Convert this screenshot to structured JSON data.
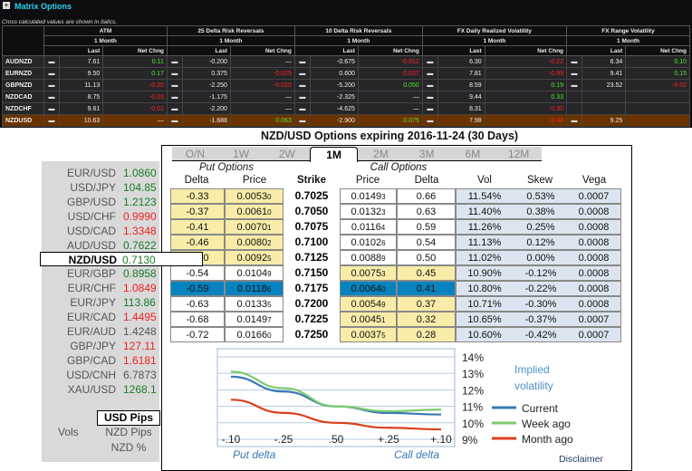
{
  "panel": {
    "title": "Matrix Options",
    "note": "Cross calculated values are shown in italics."
  },
  "matrix": {
    "groups": [
      "ATM",
      "25 Delta Risk Reversals",
      "10 Delta Risk Reversals",
      "FX Daily Realized Volatility",
      "FX Range Volatility"
    ],
    "tenor": "1 Month",
    "last_label": "Last",
    "chg_label": "Net Chng",
    "rows": [
      {
        "name": "AUDNZD",
        "vals": [
          [
            "7.61",
            "0.11"
          ],
          [
            "-0.200",
            "—"
          ],
          [
            "-0.675",
            "-0.012"
          ],
          [
            "6.30",
            "-0.22"
          ],
          [
            "6.34",
            "0.10"
          ]
        ]
      },
      {
        "name": "EURNZD",
        "vals": [
          [
            "9.50",
            "0.17"
          ],
          [
            "0.375",
            "-0.025"
          ],
          [
            "0.600",
            "-0.037"
          ],
          [
            "7.81",
            "-0.99"
          ],
          [
            "9.41",
            "0.15"
          ]
        ]
      },
      {
        "name": "GBPNZD",
        "vals": [
          [
            "11.13",
            "-0.25"
          ],
          [
            "-2.250",
            "-0.025"
          ],
          [
            "-5.200",
            "0.050"
          ],
          [
            "8.59",
            "0.19"
          ],
          [
            "23.52",
            "-0.02"
          ]
        ]
      },
      {
        "name": "NZDCAD",
        "vals": [
          [
            "8.75",
            "-0.03"
          ],
          [
            "-1.175",
            "—"
          ],
          [
            "-2.325",
            "—"
          ],
          [
            "9.44",
            "0.33"
          ],
          null
        ]
      },
      {
        "name": "NZDCHF",
        "vals": [
          [
            "9.61",
            "-0.01"
          ],
          [
            "-2.200",
            "—"
          ],
          [
            "-4.625",
            "—"
          ],
          [
            "8.31",
            "-0.30"
          ],
          null
        ]
      },
      {
        "name": "NZDUSD",
        "vals": [
          [
            "10.63",
            "—"
          ],
          [
            "-1.688",
            "0.063"
          ],
          [
            "-2.900",
            "0.075"
          ],
          [
            "7.98",
            "-0.44"
          ],
          [
            "9.25",
            ""
          ]
        ],
        "highlight": true
      }
    ]
  },
  "options": {
    "title": "NZD/USD Options expiring 2016-11-24 (30 Days)",
    "tabs": [
      "O/N",
      "1W",
      "2W",
      "1M",
      "2M",
      "3M",
      "6M",
      "12M"
    ],
    "active_tab": "1M",
    "put_label": "Put Options",
    "call_label": "Call Options",
    "cols": [
      "Delta",
      "Price",
      "Strike",
      "Price",
      "Delta",
      "Vol",
      "Skew",
      "Vega"
    ],
    "rows": [
      {
        "pd": "-0.33",
        "pp": "0.0053",
        "ppx": "0",
        "k": "0.7025",
        "cp": "0.0149",
        "cpx": "3",
        "cd": "0.66",
        "vol": "11.54%",
        "skew": "0.53%",
        "vega": "0.0007"
      },
      {
        "pd": "-0.37",
        "pp": "0.0061",
        "ppx": "0",
        "k": "0.7050",
        "cp": "0.0132",
        "cpx": "3",
        "cd": "0.63",
        "vol": "11.40%",
        "skew": "0.38%",
        "vega": "0.0008"
      },
      {
        "pd": "-0.41",
        "pp": "0.0070",
        "ppx": "1",
        "k": "0.7075",
        "cp": "0.0116",
        "cpx": "4",
        "cd": "0.59",
        "vol": "11.26%",
        "skew": "0.25%",
        "vega": "0.0008"
      },
      {
        "pd": "-0.46",
        "pp": "0.0080",
        "ppx": "2",
        "k": "0.7100",
        "cp": "0.0102",
        "cpx": "6",
        "cd": "0.54",
        "vol": "11.13%",
        "skew": "0.12%",
        "vega": "0.0008"
      },
      {
        "pd": "-0.50",
        "pp": "0.0092",
        "ppx": "5",
        "k": "0.7125",
        "cp": "0.0088",
        "cpx": "9",
        "cd": "0.50",
        "vol": "11.02%",
        "skew": "0.00%",
        "vega": "0.0008"
      },
      {
        "pd": "-0.54",
        "pp": "0.0104",
        "ppx": "9",
        "k": "0.7150",
        "cp": "0.0075",
        "cpx": "3",
        "cd": "0.45",
        "vol": "10.90%",
        "skew": "-0.12%",
        "vega": "0.0008"
      },
      {
        "pd": "-0.59",
        "pp": "0.0118",
        "ppx": "6",
        "k": "0.7175",
        "cp": "0.0064",
        "cpx": "0",
        "cd": "0.41",
        "vol": "10.80%",
        "skew": "-0.22%",
        "vega": "0.0008"
      },
      {
        "pd": "-0.63",
        "pp": "0.0133",
        "ppx": "5",
        "k": "0.7200",
        "cp": "0.0054",
        "cpx": "9",
        "cd": "0.37",
        "vol": "10.71%",
        "skew": "-0.30%",
        "vega": "0.0008"
      },
      {
        "pd": "-0.68",
        "pp": "0.0149",
        "ppx": "7",
        "k": "0.7225",
        "cp": "0.0045",
        "cpx": "1",
        "cd": "0.32",
        "vol": "10.65%",
        "skew": "-0.37%",
        "vega": "0.0007"
      },
      {
        "pd": "-0.72",
        "pp": "0.0166",
        "ppx": "0",
        "k": "0.7250",
        "cp": "0.0037",
        "cpx": "5",
        "cd": "0.28",
        "vol": "10.60%",
        "skew": "-0.42%",
        "vega": "0.0007"
      }
    ]
  },
  "rates": [
    {
      "pair": "EUR/USD",
      "value": "1.0860",
      "color": "green"
    },
    {
      "pair": "USD/JPY",
      "value": "104.85",
      "color": "green"
    },
    {
      "pair": "GBP/USD",
      "value": "1.2123",
      "color": "green"
    },
    {
      "pair": "USD/CHF",
      "value": "0.9990",
      "color": "red"
    },
    {
      "pair": "USD/CAD",
      "value": "1.3348",
      "color": "red"
    },
    {
      "pair": "AUD/USD",
      "value": "0.7622",
      "color": "green"
    },
    {
      "pair": "NZD/USD",
      "value": "0.7130",
      "color": "green",
      "selected": true
    },
    {
      "pair": "EUR/GBP",
      "value": "0.8958",
      "color": "green"
    },
    {
      "pair": "EUR/CHF",
      "value": "1.0849",
      "color": "red"
    },
    {
      "pair": "EUR/JPY",
      "value": "113.86",
      "color": "green"
    },
    {
      "pair": "EUR/CAD",
      "value": "1.4495",
      "color": "red"
    },
    {
      "pair": "EUR/AUD",
      "value": "1.4248",
      "color": "gray"
    },
    {
      "pair": "GBP/JPY",
      "value": "127.11",
      "color": "red"
    },
    {
      "pair": "GBP/CAD",
      "value": "1.6181",
      "color": "red"
    },
    {
      "pair": "USD/CNH",
      "value": "6.7873",
      "color": "gray"
    },
    {
      "pair": "XAU/USD",
      "value": "1268.1",
      "color": "green"
    }
  ],
  "vols": {
    "label": "Vols",
    "options": [
      "USD Pips",
      "NZD Pips",
      "NZD %"
    ],
    "selected": "USD Pips"
  },
  "chart_data": {
    "type": "line",
    "categories": [
      "-.10",
      "-.25",
      ".50",
      "+.25",
      "+.10"
    ],
    "yticks": [
      "14%",
      "13%",
      "12%",
      "11%",
      "10%",
      "9%"
    ],
    "ylim": [
      9,
      14
    ],
    "xlabel_left": "Put delta",
    "xlabel_right": "Call delta",
    "legend_title": "Implied volatility",
    "series": [
      {
        "name": "Current",
        "color": "#3a78b5",
        "values": [
          12.8,
          11.9,
          11.0,
          10.6,
          10.5
        ]
      },
      {
        "name": "Week ago",
        "color": "#7ccb6e",
        "values": [
          13.1,
          12.1,
          11.0,
          10.7,
          10.8
        ]
      },
      {
        "name": "Month ago",
        "color": "#d9401c",
        "values": [
          11.4,
          10.6,
          10.0,
          9.7,
          9.6
        ]
      }
    ],
    "grid": true,
    "legend": "right"
  },
  "disclaimer": "Disclaimer"
}
